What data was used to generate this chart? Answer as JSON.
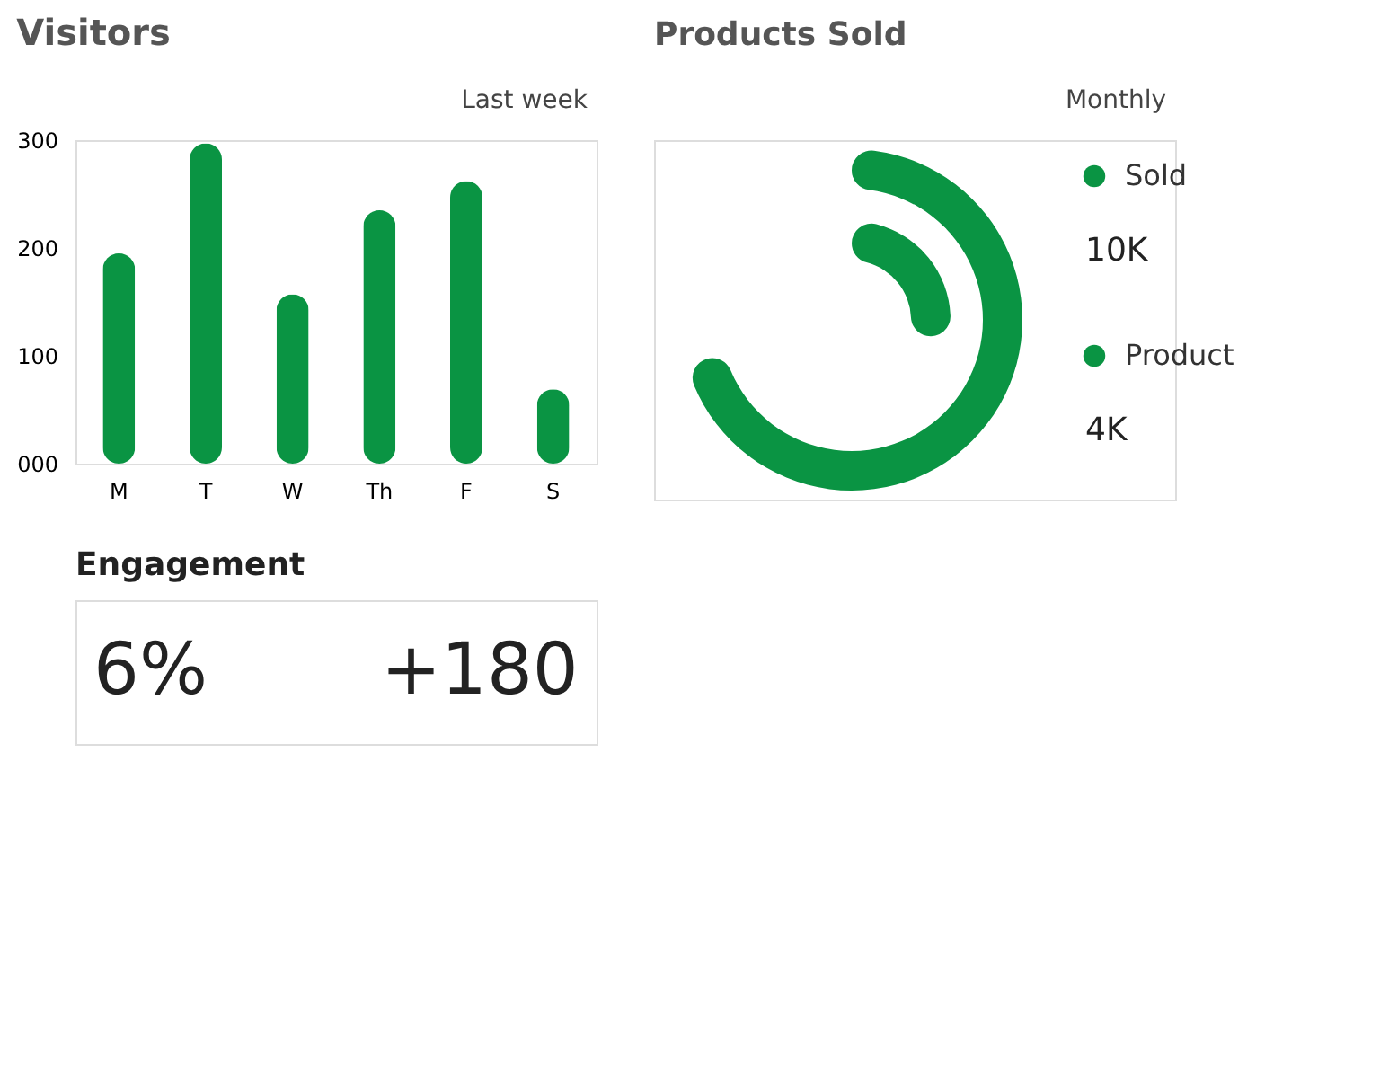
{
  "chart_data": [
    {
      "type": "bar",
      "title": "Visitors",
      "annotations": [
        "Last week"
      ],
      "categories": [
        "M",
        "T",
        "W",
        "Th",
        "F",
        "S"
      ],
      "values": [
        195,
        297,
        157,
        235,
        262,
        69
      ],
      "color": "#0a9443",
      "ylim": [
        0,
        300
      ],
      "yticks": [
        {
          "value": 0,
          "label": "000"
        },
        100,
        200,
        300
      ],
      "grid": false
    },
    {
      "type": "other",
      "title": "Products Sold",
      "annotations": [
        "Monthly"
      ],
      "categories": [
        "Sold",
        "Product"
      ],
      "values": [
        10000,
        4000
      ],
      "value_labels": [
        "10K",
        "4K"
      ],
      "colors": [
        "#0a9443",
        "#0a9443"
      ]
    },
    {
      "type": "other",
      "title": "Engagement",
      "annotations": [
        "6%",
        "+180"
      ]
    }
  ]
}
